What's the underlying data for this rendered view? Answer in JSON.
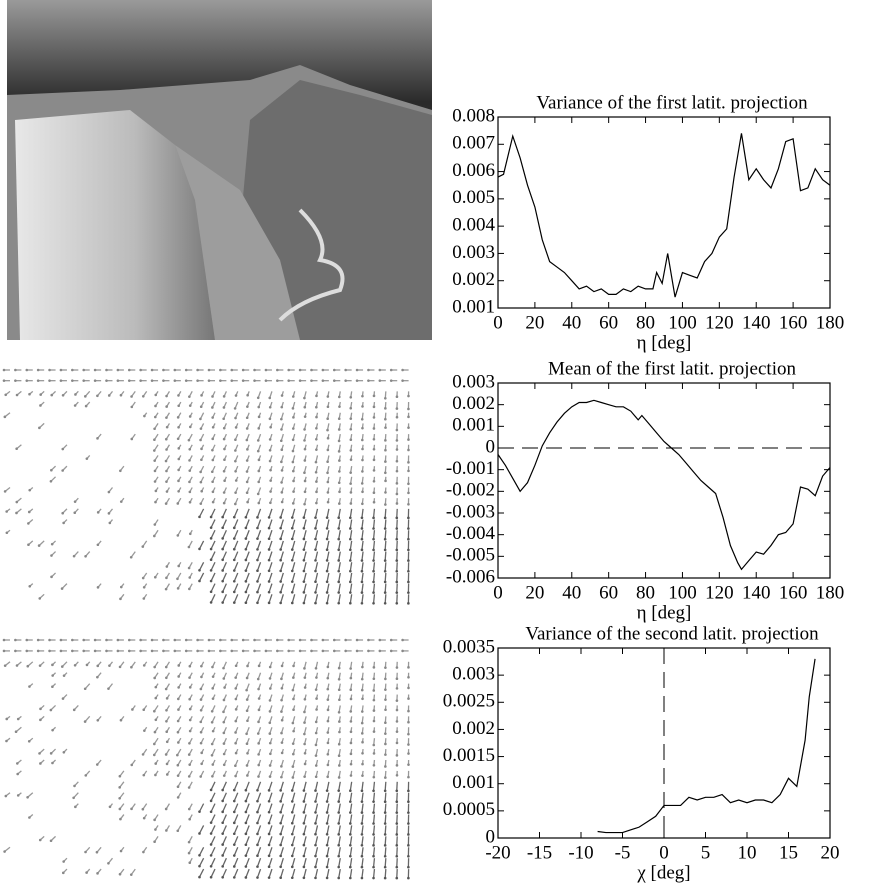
{
  "chart_data": [
    {
      "type": "line",
      "title": "Variance of the first latit. projection",
      "x_label": "η [deg]",
      "color": "#000000",
      "x": [
        0,
        3,
        8,
        12,
        16,
        20,
        24,
        28,
        32,
        36,
        40,
        44,
        48,
        52,
        56,
        60,
        64,
        68,
        72,
        76,
        80,
        84,
        86,
        89,
        92,
        96,
        100,
        104,
        108,
        112,
        116,
        120,
        124,
        128,
        132,
        136,
        140,
        144,
        148,
        152,
        156,
        160,
        164,
        168,
        172,
        176,
        180
      ],
      "values": [
        0.0058,
        0.0059,
        0.0073,
        0.0065,
        0.0055,
        0.0047,
        0.0035,
        0.0027,
        0.0025,
        0.0023,
        0.002,
        0.0017,
        0.0018,
        0.0016,
        0.0017,
        0.0015,
        0.0015,
        0.0017,
        0.0016,
        0.0018,
        0.0017,
        0.0017,
        0.0023,
        0.0019,
        0.003,
        0.0014,
        0.0023,
        0.0022,
        0.0021,
        0.0027,
        0.003,
        0.0036,
        0.0039,
        0.0058,
        0.0074,
        0.0057,
        0.0061,
        0.0057,
        0.0054,
        0.0061,
        0.0071,
        0.0072,
        0.0053,
        0.0054,
        0.0061,
        0.0057,
        0.0055
      ],
      "xlim": [
        0,
        180
      ],
      "xticks": [
        0,
        20,
        40,
        60,
        80,
        100,
        120,
        140,
        160,
        180
      ],
      "ylim": [
        0.001,
        0.008
      ],
      "yticks": [
        0.001,
        0.002,
        0.003,
        0.004,
        0.005,
        0.006,
        0.007,
        0.008
      ]
    },
    {
      "type": "line",
      "title": "Mean of the first latit. projection",
      "x_label": "η [deg]",
      "color": "#000000",
      "hline": 0,
      "x": [
        0,
        4,
        8,
        12,
        16,
        20,
        24,
        28,
        32,
        36,
        40,
        44,
        48,
        52,
        56,
        60,
        64,
        68,
        72,
        76,
        78,
        82,
        86,
        90,
        94,
        98,
        102,
        106,
        110,
        114,
        118,
        122,
        126,
        130,
        132,
        136,
        140,
        144,
        148,
        152,
        156,
        160,
        164,
        168,
        172,
        176,
        180
      ],
      "values": [
        -0.0003,
        -0.0008,
        -0.0014,
        -0.002,
        -0.0016,
        -0.0008,
        0.0001,
        0.0007,
        0.0012,
        0.0016,
        0.0019,
        0.0021,
        0.0021,
        0.0022,
        0.0021,
        0.002,
        0.0019,
        0.0019,
        0.0017,
        0.0013,
        0.0015,
        0.0011,
        0.0007,
        0.0003,
        0.0,
        -0.0003,
        -0.0007,
        -0.0011,
        -0.0015,
        -0.0018,
        -0.0021,
        -0.0032,
        -0.0045,
        -0.0053,
        -0.0056,
        -0.0052,
        -0.0048,
        -0.0049,
        -0.0045,
        -0.004,
        -0.0039,
        -0.0035,
        -0.0018,
        -0.0019,
        -0.0022,
        -0.0013,
        -0.0009
      ],
      "xlim": [
        0,
        180
      ],
      "xticks": [
        0,
        20,
        40,
        60,
        80,
        100,
        120,
        140,
        160,
        180
      ],
      "ylim": [
        -0.006,
        0.003
      ],
      "yticks": [
        -0.006,
        -0.005,
        -0.004,
        -0.003,
        -0.002,
        -0.001,
        0,
        0.001,
        0.002,
        0.003
      ]
    },
    {
      "type": "line",
      "title": "Variance of the second latit. projection",
      "x_label": "χ [deg]",
      "color": "#000000",
      "vline": 0,
      "x": [
        -8,
        -7,
        -6,
        -5,
        -4,
        -3,
        -2,
        -1,
        0,
        1,
        2,
        3,
        4,
        5,
        6,
        7,
        8,
        9,
        10,
        11,
        12,
        13,
        14,
        15,
        16,
        17,
        17.5,
        18.2
      ],
      "values": [
        0.00012,
        0.0001,
        0.0001,
        0.0001,
        0.00015,
        0.0002,
        0.0003,
        0.0004,
        0.0006,
        0.0006,
        0.0006,
        0.00075,
        0.0007,
        0.00075,
        0.00075,
        0.0008,
        0.00065,
        0.0007,
        0.00065,
        0.0007,
        0.0007,
        0.00065,
        0.0008,
        0.0011,
        0.00095,
        0.0018,
        0.0026,
        0.0033
      ],
      "xlim": [
        -20,
        20
      ],
      "xticks": [
        -20,
        -15,
        -10,
        -5,
        0,
        5,
        10,
        15,
        20
      ],
      "ylim": [
        0,
        0.0035
      ],
      "yticks": [
        0,
        0.0005,
        0.001,
        0.0015,
        0.002,
        0.0025,
        0.003,
        0.0035
      ]
    }
  ]
}
